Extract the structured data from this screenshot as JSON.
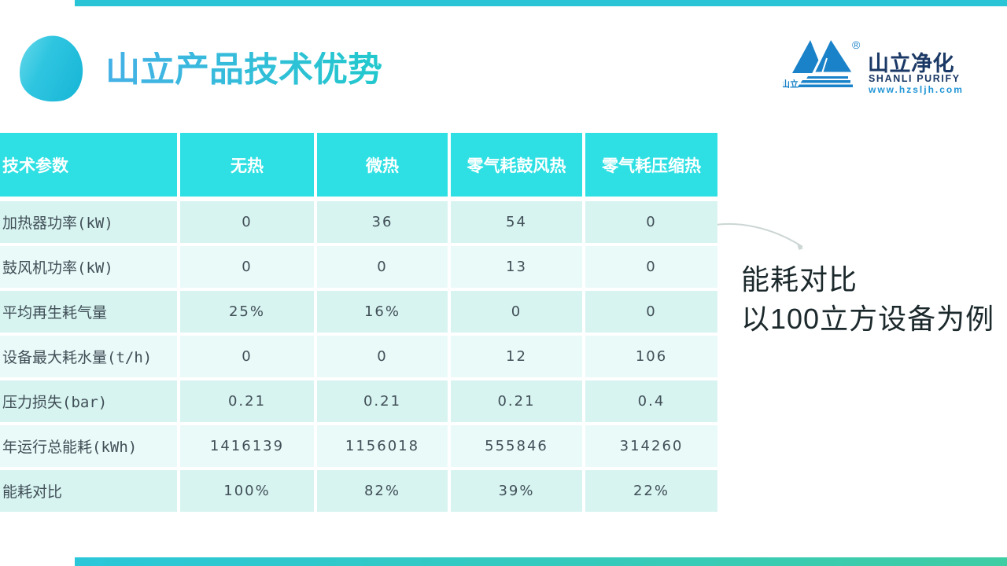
{
  "slide": {
    "title": "山立产品技术优势",
    "annotation": {
      "line1": "能耗对比",
      "line2": "以100立方设备为例"
    },
    "logo": {
      "mark_text": "山立",
      "registered": "®",
      "name_cn": "山立净化",
      "name_en": "SHANLI PURIFY",
      "website": "www.hzsljh.com"
    },
    "colors": {
      "header_teal": "#2ee0e3",
      "row_dark": "#d7f4f1",
      "row_light": "#eafaf9",
      "top_bar": "#2ac4d7",
      "bottom_bar_from": "#2bc7d9",
      "bottom_bar_to": "#3fcda4",
      "logo_blue": "#1a82c8",
      "logo_navy": "#1b3966",
      "logo_link_blue": "#2196d6",
      "title_from": "#45b1e6",
      "title_to": "#22c9cd",
      "cell_text": "#414f57",
      "note_text": "#1c292c"
    }
  },
  "table": {
    "header": [
      "技术参数",
      "无热",
      "微热",
      "零气耗鼓风热",
      "零气耗压缩热"
    ],
    "rows": [
      {
        "label": "加热器功率(kW)",
        "values": [
          "0",
          "36",
          "54",
          "0"
        ]
      },
      {
        "label": "鼓风机功率(kW)",
        "values": [
          "0",
          "0",
          "13",
          "0"
        ]
      },
      {
        "label": "平均再生耗气量",
        "values": [
          "25%",
          "16%",
          "0",
          "0"
        ]
      },
      {
        "label": "设备最大耗水量(t/h)",
        "values": [
          "0",
          "0",
          "12",
          "106"
        ]
      },
      {
        "label": "压力损失(bar)",
        "values": [
          "0.21",
          "0.21",
          "0.21",
          "0.4"
        ]
      },
      {
        "label": "年运行总能耗(kWh)",
        "values": [
          "1416139",
          "1156018",
          "555846",
          "314260"
        ]
      },
      {
        "label": "能耗对比",
        "values": [
          "100%",
          "82%",
          "39%",
          "22%"
        ]
      }
    ]
  }
}
